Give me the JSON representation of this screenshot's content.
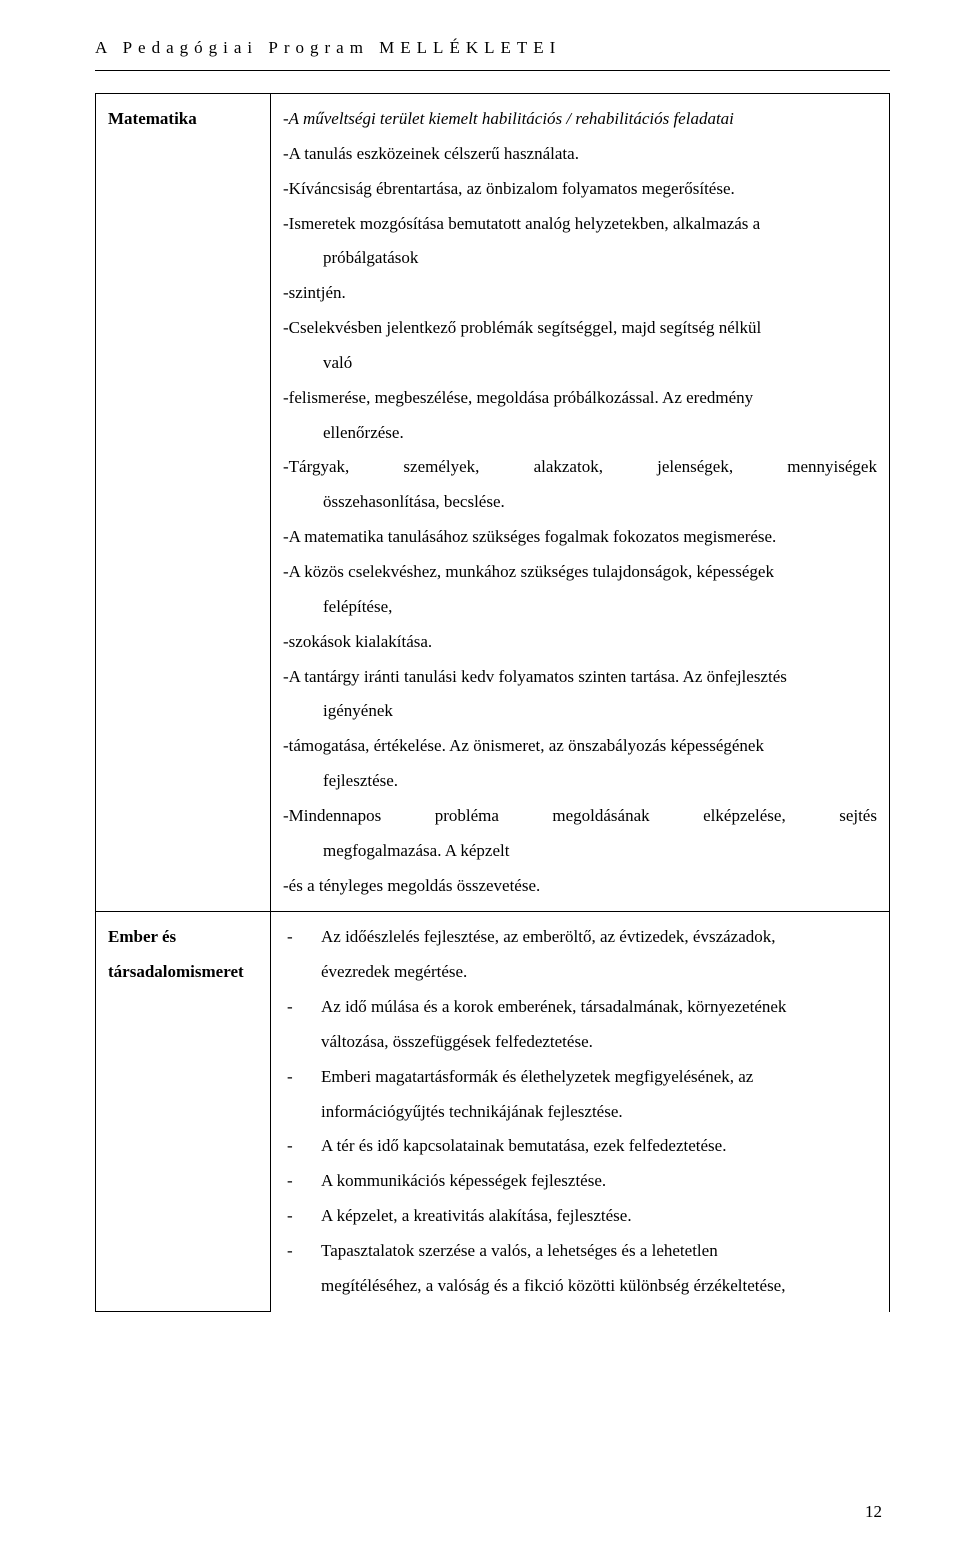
{
  "header": {
    "title": "A Pedagógiai Program MELLÉKLETEI"
  },
  "row1": {
    "label": "Matematika",
    "line1": "-A műveltségi terület kiemelt habilitációs / rehabilitációs feladatai",
    "l2": "-A tanulás eszközeinek célszerű használata.",
    "l3": "-Kíváncsiság ébrentartása, az önbizalom folyamatos megerősítése.",
    "l4": "-Ismeretek mozgósítása bemutatott analóg helyzetekben, alkalmazás a",
    "l4b": "próbálgatások",
    "l5": "-szintjén.",
    "l6": "-Cselekvésben jelentkező problémák segítséggel, majd segítség nélkül",
    "l6b": "való",
    "l7a": "-felismerése, megbeszélése, megoldása próbálkozással. Az eredmény",
    "l7b": "ellenőrzése.",
    "l8a": "-Tárgyak,",
    "l8b": "személyek,",
    "l8c": "alakzatok,",
    "l8d": "jelenségek,",
    "l8e": "mennyiségek",
    "l8f": "összehasonlítása, becslése.",
    "l9": "-A matematika tanulásához szükséges fogalmak fokozatos megismerése.",
    "l10": "-A közös cselekvéshez, munkához szükséges tulajdonságok, képességek",
    "l10b": "felépítése,",
    "l11": "-szokások kialakítása.",
    "l12": "-A tantárgy iránti tanulási kedv folyamatos szinten tartása. Az önfejlesztés",
    "l12b": "igényének",
    "l13": "-támogatása, értékelése. Az önismeret, az önszabályozás képességének",
    "l13b": "fejlesztése.",
    "l14a": "-Mindennapos",
    "l14b": "probléma",
    "l14c": "megoldásának",
    "l14d": "elképzelése,",
    "l14e": "sejtés",
    "l14f": "megfogalmazása. A képzelt",
    "l15": "-és a tényleges megoldás összevetése."
  },
  "row2": {
    "label1": "Ember és",
    "label2": "társadalomismeret",
    "dash": "-",
    "b1a": "Az időészlelés fejlesztése, az emberöltő, az évtizedek, évszázadok,",
    "b1b": "évezredek megértése.",
    "b2a": "Az idő múlása és a korok emberének, társadalmának, környezetének",
    "b2b": "változása, összefüggések felfedeztetése.",
    "b3a": "Emberi magatartásformák és élethelyzetek megfigyelésének, az",
    "b3b": "információgyűjtés technikájának fejlesztése.",
    "b4": "A tér és idő kapcsolatainak bemutatása, ezek felfedeztetése.",
    "b5": "A kommunikációs képességek fejlesztése.",
    "b6": "A képzelet, a kreativitás alakítása, fejlesztése.",
    "b7a": "Tapasztalatok szerzése a valós, a lehetséges és a lehetetlen",
    "b7b": "megítéléséhez, a valóság és a fikció közötti különbség érzékeltetése,"
  },
  "page": {
    "num": "12"
  }
}
